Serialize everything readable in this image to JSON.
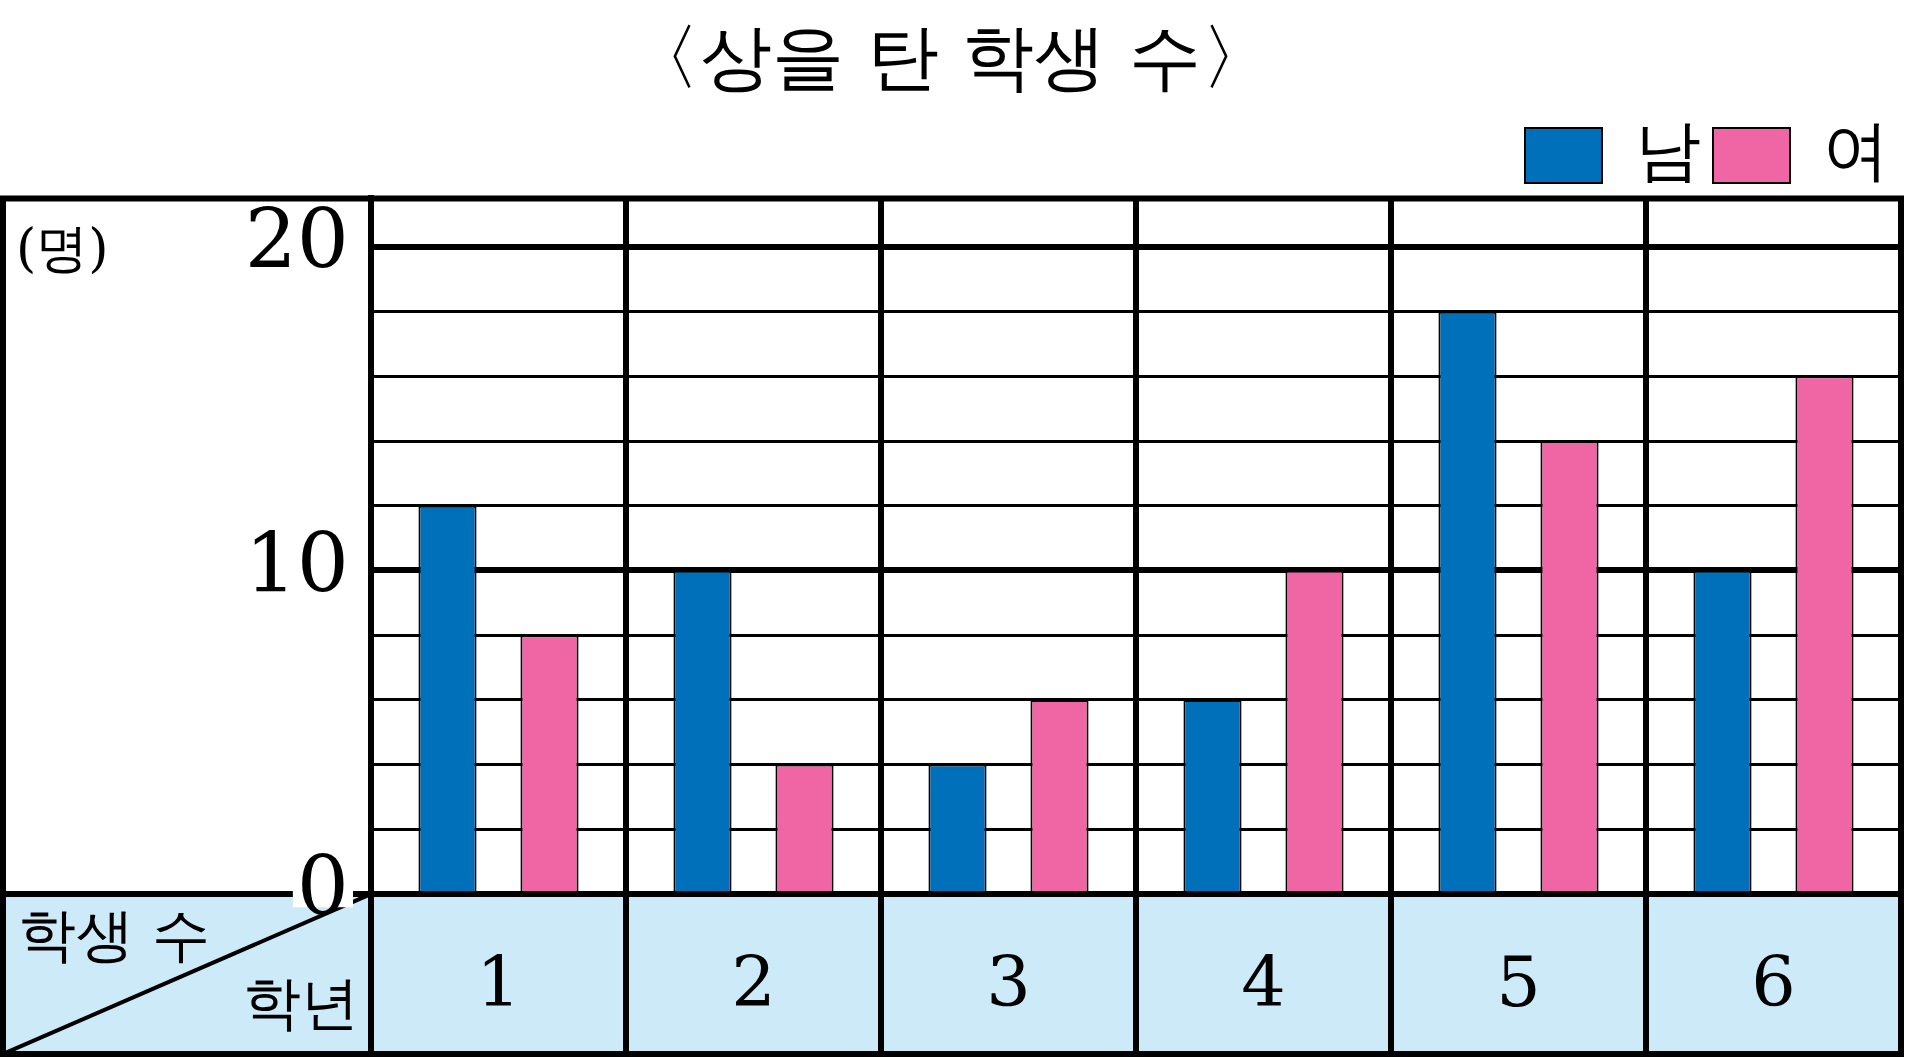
{
  "chart_data": {
    "type": "bar",
    "title": "〈상을 탄 학생 수〉",
    "xlabel": "학년",
    "ylabel": "(명)",
    "annotations": [
      "학생 수"
    ],
    "categories": [
      "1",
      "2",
      "3",
      "4",
      "5",
      "6"
    ],
    "series": [
      {
        "name": "남",
        "color": "#0070bb",
        "values": [
          12,
          10,
          4,
          6,
          18,
          10
        ]
      },
      {
        "name": "여",
        "color": "#f066a4",
        "values": [
          8,
          4,
          6,
          10,
          14,
          16
        ]
      }
    ],
    "ylim": [
      0,
      21.5
    ],
    "yticks": [
      0,
      {
        "value": 2,
        "label": null
      },
      {
        "value": 4,
        "label": null
      },
      {
        "value": 6,
        "label": null
      },
      {
        "value": 8,
        "label": null
      },
      10,
      {
        "value": 12,
        "label": null
      },
      {
        "value": 14,
        "label": null
      },
      {
        "value": 16,
        "label": null
      },
      {
        "value": 18,
        "label": null
      },
      20
    ],
    "grid": true,
    "legend": "top right"
  }
}
